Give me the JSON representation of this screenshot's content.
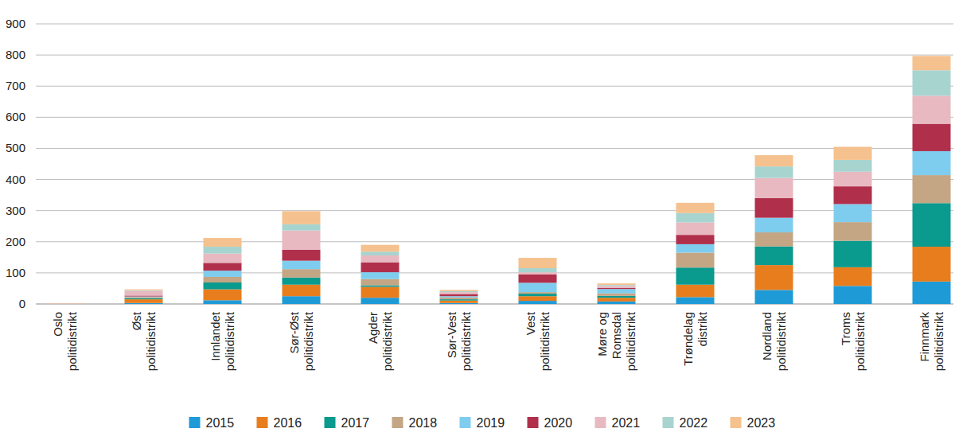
{
  "chart_data": {
    "type": "bar",
    "stacked": true,
    "grid": true,
    "legend": "bottom",
    "categories": [
      "Oslo\npolitidistrikt",
      "Øst\npolitidistrikt",
      "Innlandet\npolitidistrikt",
      "Sør-Øst\npolitidistrikt",
      "Agder\npolitidistrikt",
      "Sør-Vest\npolitidistrikt",
      "Vest\npolitidistrikt",
      "Møre og\nRomsdal\npolitidistrikt",
      "Trøndelag\ndistrikt",
      "Nordland\npolitidistrikt",
      "Troms\npolitidistrikt",
      "Finnmark\npolitidistrikt"
    ],
    "series": [
      {
        "name": "2015",
        "color": "#1e9bd7",
        "values": [
          0,
          3,
          12,
          25,
          20,
          3,
          10,
          8,
          22,
          45,
          58,
          72
        ]
      },
      {
        "name": "2016",
        "color": "#e87d1e",
        "values": [
          0,
          12,
          35,
          37,
          35,
          8,
          15,
          12,
          40,
          80,
          60,
          112
        ]
      },
      {
        "name": "2017",
        "color": "#0a9a8e",
        "values": [
          0,
          3,
          22,
          23,
          5,
          4,
          8,
          6,
          55,
          60,
          85,
          140
        ]
      },
      {
        "name": "2018",
        "color": "#c4a584",
        "values": [
          0,
          4,
          18,
          27,
          20,
          6,
          5,
          8,
          48,
          45,
          60,
          90
        ]
      },
      {
        "name": "2019",
        "color": "#7fcdee",
        "values": [
          0,
          2,
          20,
          27,
          22,
          4,
          30,
          14,
          27,
          47,
          58,
          77
        ]
      },
      {
        "name": "2020",
        "color": "#b0304c",
        "values": [
          0,
          3,
          25,
          35,
          32,
          7,
          27,
          4,
          30,
          63,
          57,
          88
        ]
      },
      {
        "name": "2021",
        "color": "#e8b9c0",
        "values": [
          1,
          15,
          30,
          62,
          22,
          6,
          7,
          6,
          40,
          65,
          47,
          90
        ]
      },
      {
        "name": "2022",
        "color": "#a8d4d0",
        "values": [
          0,
          2,
          22,
          20,
          12,
          3,
          13,
          3,
          30,
          37,
          38,
          82
        ]
      },
      {
        "name": "2023",
        "color": "#f5c18e",
        "values": [
          1,
          3,
          28,
          42,
          22,
          4,
          33,
          5,
          33,
          36,
          42,
          46
        ]
      }
    ],
    "ylim": [
      0,
      900
    ],
    "yticks": [
      0,
      100,
      200,
      300,
      400,
      500,
      600,
      700,
      800,
      900
    ]
  }
}
